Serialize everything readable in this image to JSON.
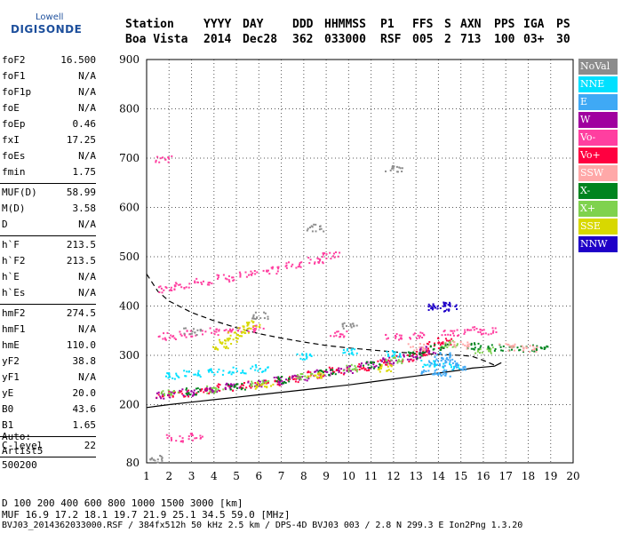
{
  "logo": {
    "line1": "Lowell",
    "line2": "DIGISONDE"
  },
  "header": {
    "row1": [
      "Station",
      "YYYY",
      "DAY",
      "DDD",
      "HHMMSS",
      "P1",
      "FFS",
      "S",
      "AXN",
      "PPS",
      "IGA",
      "PS"
    ],
    "row2": [
      "Boa Vista",
      "2014",
      "Dec28",
      "362",
      "033000",
      "RSF",
      "005",
      "2",
      "713",
      "100",
      "03+",
      "30"
    ]
  },
  "params": [
    [
      {
        "k": "foF2",
        "v": "16.500"
      },
      {
        "k": "foF1",
        "v": "N/A"
      },
      {
        "k": "foF1p",
        "v": "N/A"
      },
      {
        "k": "foE",
        "v": "N/A"
      },
      {
        "k": "foEp",
        "v": "0.46"
      },
      {
        "k": "fxI",
        "v": "17.25"
      },
      {
        "k": "foEs",
        "v": "N/A"
      },
      {
        "k": "fmin",
        "v": "1.75"
      }
    ],
    [
      {
        "k": "MUF(D)",
        "v": "58.99"
      },
      {
        "k": "M(D)",
        "v": "3.58"
      },
      {
        "k": "D",
        "v": "N/A"
      }
    ],
    [
      {
        "k": "h`F",
        "v": "213.5"
      },
      {
        "k": "h`F2",
        "v": "213.5"
      },
      {
        "k": "h`E",
        "v": "N/A"
      },
      {
        "k": "h`Es",
        "v": "N/A"
      }
    ],
    [
      {
        "k": "hmF2",
        "v": "274.5"
      },
      {
        "k": "hmF1",
        "v": "N/A"
      },
      {
        "k": "hmE",
        "v": "110.0"
      },
      {
        "k": "yF2",
        "v": "38.8"
      },
      {
        "k": "yF1",
        "v": "N/A"
      },
      {
        "k": "yE",
        "v": "20.0"
      },
      {
        "k": "B0",
        "v": "43.6"
      },
      {
        "k": "B1",
        "v": "1.65"
      }
    ],
    [
      {
        "k": "C-level",
        "v": "22"
      }
    ]
  ],
  "auto": {
    "line1": "Auto:",
    "line2": "Artist5",
    "line3": "500200"
  },
  "legend": [
    {
      "label": "NoVal",
      "color": "#8c8c8c"
    },
    {
      "label": "NNE",
      "color": "#00e0ff"
    },
    {
      "label": "E",
      "color": "#3fa9f5"
    },
    {
      "label": "W",
      "color": "#a0009f"
    },
    {
      "label": "Vo-",
      "color": "#ff3fa0"
    },
    {
      "label": "Vo+",
      "color": "#ff0040"
    },
    {
      "label": "SSW",
      "color": "#ffa8a8"
    },
    {
      "label": "X-",
      "color": "#00841f"
    },
    {
      "label": "X+",
      "color": "#7fd24e"
    },
    {
      "label": "SSE",
      "color": "#d8d800"
    },
    {
      "label": "NNW",
      "color": "#1f00c8"
    }
  ],
  "footer": {
    "row1": "D     100  200  400  600  800 1000 1500 3000 [km]",
    "row2": "MUF  16.9 17.2 18.1 19.7 21.9 25.1 34.5 59.0 [MHz]",
    "row3": "BVJ03_2014362033000.RSF / 384fx512h 50 kHz 2.5 km / DPS-4D BVJ03 003 / 2.8 N 299.3 E  Ion2Png 1.3.20"
  },
  "chart_data": {
    "type": "scatter",
    "xlim": [
      1,
      20
    ],
    "ylim": [
      80,
      900
    ],
    "x_ticks": [
      1,
      2,
      3,
      4,
      5,
      6,
      7,
      8,
      9,
      10,
      11,
      12,
      13,
      14,
      15,
      16,
      17,
      18,
      19,
      20
    ],
    "y_ticks": [
      80,
      200,
      300,
      400,
      500,
      600,
      700,
      800,
      900
    ],
    "grid": true,
    "legend_position": "right",
    "series": [
      {
        "name": "Vo+",
        "points": [
          [
            1.8,
            222
          ],
          [
            2.5,
            224
          ],
          [
            3.5,
            230
          ],
          [
            4.5,
            236
          ],
          [
            5.5,
            242
          ],
          [
            6.5,
            248
          ],
          [
            7.5,
            254
          ],
          [
            8.5,
            262
          ],
          [
            9.5,
            270
          ],
          [
            10.5,
            278
          ],
          [
            11.5,
            286
          ],
          [
            12.5,
            295
          ],
          [
            13.2,
            305
          ],
          [
            13.8,
            322
          ],
          [
            14.3,
            330
          ]
        ]
      },
      {
        "name": "W",
        "points": [
          [
            1.8,
            220
          ],
          [
            2.8,
            226
          ],
          [
            3.8,
            232
          ],
          [
            4.8,
            238
          ],
          [
            5.8,
            244
          ],
          [
            6.8,
            250
          ],
          [
            7.8,
            257
          ],
          [
            8.8,
            265
          ],
          [
            9.8,
            273
          ],
          [
            10.8,
            281
          ],
          [
            11.8,
            290
          ],
          [
            12.8,
            300
          ],
          [
            13.5,
            312
          ]
        ]
      },
      {
        "name": "Vo-",
        "points": [
          [
            1.9,
            436
          ],
          [
            2.5,
            442
          ],
          [
            3.5,
            450
          ],
          [
            4.5,
            458
          ],
          [
            5.5,
            466
          ],
          [
            6.5,
            474
          ],
          [
            7.5,
            484
          ],
          [
            8.5,
            494
          ],
          [
            9.2,
            505
          ],
          [
            1.9,
            340
          ],
          [
            2.8,
            345
          ],
          [
            3.8,
            350
          ],
          [
            4.8,
            352
          ],
          [
            5.8,
            355
          ],
          [
            9.5,
            346
          ],
          [
            12,
            338
          ],
          [
            13,
            342
          ],
          [
            14.5,
            348
          ],
          [
            15.5,
            352
          ],
          [
            16.2,
            350
          ],
          [
            1.7,
            700
          ],
          [
            2.2,
            132
          ],
          [
            3.2,
            135
          ]
        ]
      },
      {
        "name": "NNE",
        "points": [
          [
            2.2,
            260
          ],
          [
            3,
            265
          ],
          [
            4,
            268
          ],
          [
            5,
            270
          ],
          [
            6,
            275
          ],
          [
            8,
            300
          ],
          [
            10,
            310
          ],
          [
            12,
            305
          ],
          [
            13.5,
            285
          ],
          [
            14.5,
            278
          ]
        ]
      },
      {
        "name": "E",
        "points": [
          [
            13.6,
            270
          ],
          [
            13.9,
            285
          ],
          [
            14.2,
            300
          ],
          [
            14.5,
            292
          ],
          [
            14.8,
            278
          ],
          [
            14.1,
            265
          ]
        ]
      },
      {
        "name": "X-",
        "points": [
          [
            3,
            228
          ],
          [
            5,
            238
          ],
          [
            7,
            252
          ],
          [
            9,
            266
          ],
          [
            11,
            282
          ],
          [
            13,
            302
          ],
          [
            14,
            318
          ],
          [
            15.5,
            320
          ],
          [
            16.5,
            318
          ],
          [
            17.5,
            315
          ],
          [
            18.5,
            315
          ]
        ]
      },
      {
        "name": "X+",
        "points": [
          [
            2,
            225
          ],
          [
            4,
            232
          ],
          [
            6,
            245
          ],
          [
            8,
            260
          ],
          [
            10,
            276
          ],
          [
            12,
            292
          ],
          [
            14.5,
            325
          ],
          [
            16,
            312
          ]
        ]
      },
      {
        "name": "SSE",
        "points": [
          [
            4.2,
            320
          ],
          [
            4.6,
            330
          ],
          [
            5,
            342
          ],
          [
            5.4,
            354
          ],
          [
            5.8,
            365
          ],
          [
            6.2,
            240
          ],
          [
            8.5,
            260
          ],
          [
            11.5,
            275
          ]
        ]
      },
      {
        "name": "SSW",
        "points": [
          [
            13,
            318
          ],
          [
            15,
            322
          ],
          [
            17,
            318
          ],
          [
            18,
            314
          ]
        ]
      },
      {
        "name": "NNW",
        "points": [
          [
            13.7,
            400
          ],
          [
            14.1,
            402
          ],
          [
            14.5,
            398
          ]
        ]
      },
      {
        "name": "NoVal",
        "points": [
          [
            1.5,
            90
          ],
          [
            3,
            350
          ],
          [
            6,
            382
          ],
          [
            8.5,
            560
          ],
          [
            10,
            360
          ],
          [
            12,
            680
          ]
        ]
      }
    ],
    "profile_curves": [
      {
        "style": "dashed",
        "points": [
          [
            1,
            465
          ],
          [
            1.5,
            430
          ],
          [
            2,
            410
          ],
          [
            3,
            387
          ],
          [
            4,
            370
          ],
          [
            5,
            356
          ],
          [
            6,
            344
          ],
          [
            7,
            335
          ],
          [
            8,
            327
          ],
          [
            9,
            320
          ],
          [
            10,
            315
          ],
          [
            11,
            311
          ],
          [
            12,
            307
          ],
          [
            13,
            304
          ],
          [
            14,
            302
          ],
          [
            15,
            300
          ],
          [
            15.5,
            298
          ],
          [
            16,
            290
          ],
          [
            16.5,
            280
          ]
        ]
      },
      {
        "style": "solid",
        "points": [
          [
            1,
            194
          ],
          [
            1.5,
            197
          ],
          [
            2,
            200
          ],
          [
            3,
            205
          ],
          [
            4,
            210
          ],
          [
            5,
            215
          ],
          [
            6,
            220
          ],
          [
            7,
            225
          ],
          [
            8,
            230
          ],
          [
            9,
            235
          ],
          [
            10,
            240
          ],
          [
            11,
            246
          ],
          [
            12,
            252
          ],
          [
            13,
            258
          ],
          [
            14,
            264
          ],
          [
            15,
            270
          ],
          [
            15.5,
            274
          ],
          [
            16,
            276
          ],
          [
            16.5,
            278
          ],
          [
            16.8,
            285
          ]
        ]
      }
    ]
  }
}
